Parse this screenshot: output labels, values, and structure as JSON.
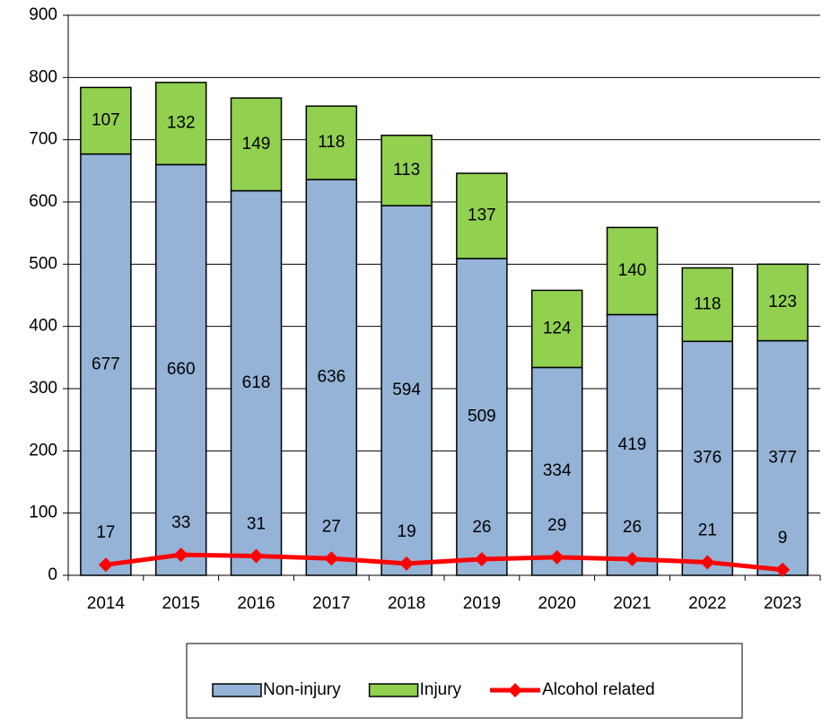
{
  "chart_data": {
    "type": "bar",
    "stacked": true,
    "categories": [
      "2014",
      "2015",
      "2016",
      "2017",
      "2018",
      "2019",
      "2020",
      "2021",
      "2022",
      "2023"
    ],
    "series": [
      {
        "name": "Non-injury",
        "color": "#95b3d7",
        "values": [
          677,
          660,
          618,
          636,
          594,
          509,
          334,
          419,
          376,
          377
        ]
      },
      {
        "name": "Injury",
        "color": "#92d050",
        "values": [
          107,
          132,
          149,
          118,
          113,
          137,
          124,
          140,
          118,
          123
        ]
      },
      {
        "name": "Alcohol related",
        "type": "line",
        "color": "#ff0000",
        "values": [
          17,
          33,
          31,
          27,
          19,
          26,
          29,
          26,
          21,
          9
        ]
      }
    ],
    "ylim": [
      0,
      900
    ],
    "yticks": [
      0,
      100,
      200,
      300,
      400,
      500,
      600,
      700,
      800,
      900
    ],
    "grid": true,
    "legend": "bottom"
  }
}
